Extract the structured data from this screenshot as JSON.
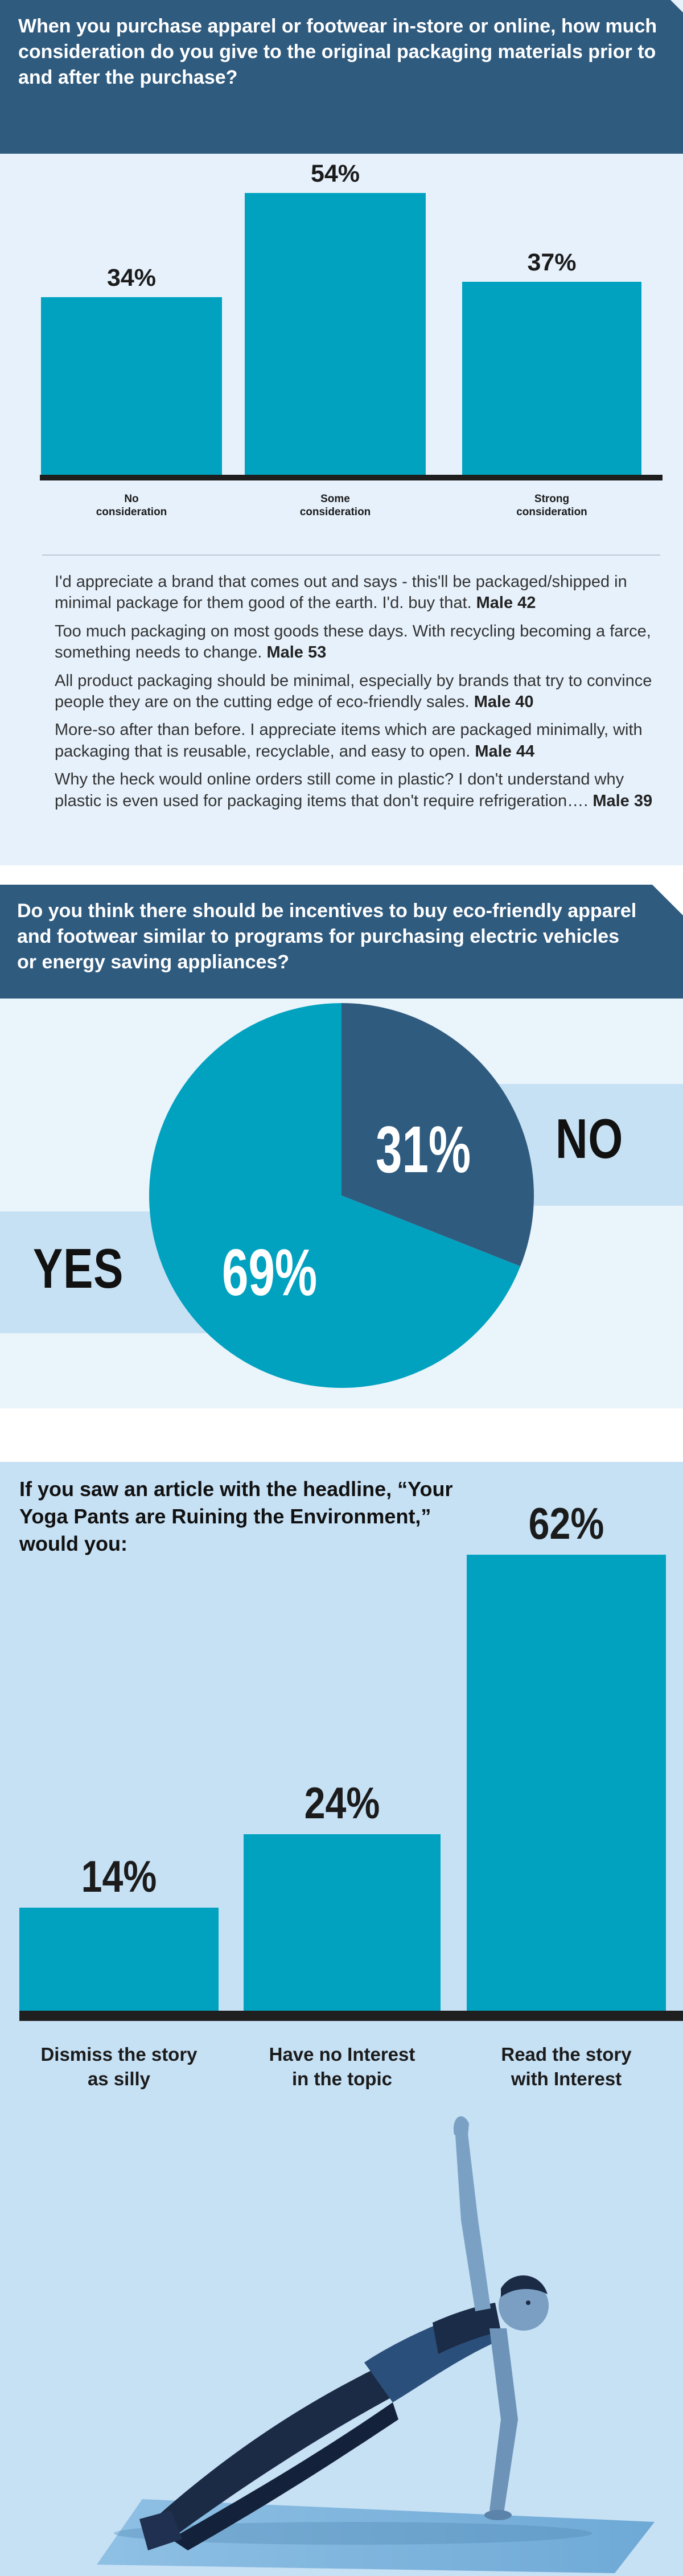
{
  "section1": {
    "question": "When you purchase apparel or footwear in-store or online, how much consideration do you give to the original packaging materials prior to and after the purchase?",
    "quotes": [
      {
        "text": "I'd appreciate a brand that comes out and says - this'll be packaged/shipped in minimal package for them good of the earth. I'd. buy that.",
        "who": "Male 42"
      },
      {
        "text": "Too much packaging on most goods these days. With recycling becoming a farce, something needs to change.",
        "who": "Male 53"
      },
      {
        "text": "All product packaging should be minimal, especially by brands that try to convince people they are on the cutting edge of eco-friendly sales.",
        "who": "Male 40"
      },
      {
        "text": "More-so after than before.  I appreciate items which are packaged minimally, with packaging that is reusable, recyclable, and easy to open.",
        "who": "Male 44"
      },
      {
        "text": "Why the heck would online orders still come in plastic? I don't understand why plastic is even used for packaging items that don't require refrigeration….",
        "who": "Male 39"
      }
    ]
  },
  "section2": {
    "question": "Do you think there should be incentives to buy eco-friendly apparel and footwear similar to programs for purchasing electric vehicles or energy saving appliances?",
    "yes_label": "YES",
    "no_label": "NO"
  },
  "section3": {
    "question": "If you saw an article with the headline, “Your Yoga Pants are Ruining the Environment,” would you:"
  },
  "colors": {
    "header_bg": "#2f5b7f",
    "bar": "#00a2c0",
    "pie_no": "#2f5b7f",
    "pie_yes": "#00a2c0",
    "light_bg": "#e6f1fb",
    "section3_bg": "#c6e0f4"
  },
  "chart_data": [
    {
      "type": "bar",
      "categories": [
        "No\nconsideration",
        "Some\nconsideration",
        "Strong\nconsideration"
      ],
      "values": [
        34,
        54,
        37
      ],
      "value_labels": [
        "34%",
        "54%",
        "37%"
      ],
      "ylim": [
        0,
        60
      ]
    },
    {
      "type": "pie",
      "categories": [
        "NO",
        "YES"
      ],
      "values": [
        31,
        69
      ],
      "value_labels": [
        "31%",
        "69%"
      ]
    },
    {
      "type": "bar",
      "categories": [
        "Dismiss the story\nas silly",
        "Have no Interest\nin the topic",
        "Read the story\nwith Interest"
      ],
      "values": [
        14,
        24,
        62
      ],
      "value_labels": [
        "14%",
        "24%",
        "62%"
      ],
      "ylim": [
        0,
        65
      ]
    }
  ]
}
